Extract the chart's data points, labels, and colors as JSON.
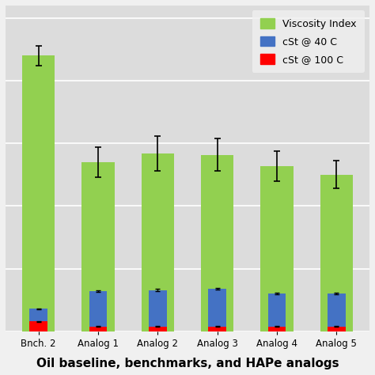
{
  "categories": [
    "Bnch. 2",
    "Analog 1",
    "Analog 2",
    "Analog 3",
    "Analog 4",
    "Analog 5"
  ],
  "viscosity_index": [
    220,
    135,
    142,
    141,
    132,
    125
  ],
  "viscosity_index_err": [
    8,
    12,
    14,
    13,
    12,
    11
  ],
  "cst_40": [
    18,
    32,
    33,
    34,
    30,
    30
  ],
  "cst_40_err": [
    0.5,
    0.8,
    0.8,
    0.8,
    0.7,
    0.7
  ],
  "cst_100": [
    8,
    4,
    4,
    4,
    4,
    4
  ],
  "cst_100_err": [
    0.2,
    0.15,
    0.15,
    0.15,
    0.15,
    0.15
  ],
  "colors": {
    "viscosity_index": "#92D050",
    "cst_40": "#4472C4",
    "cst_100": "#FF0000"
  },
  "legend_labels": [
    "Viscosity Index",
    "cSt @ 40 C",
    "cSt @ 100 C"
  ],
  "xlabel": "Oil baseline, benchmarks, and HAPe analogs",
  "ylim": [
    0,
    260
  ],
  "bar_width": 0.55,
  "background_color": "#F0F0F0",
  "plot_background": "#DCDCDC",
  "grid_color": "#FFFFFF",
  "title_fontsize": 11,
  "legend_fontsize": 9,
  "tick_fontsize": 8.5
}
